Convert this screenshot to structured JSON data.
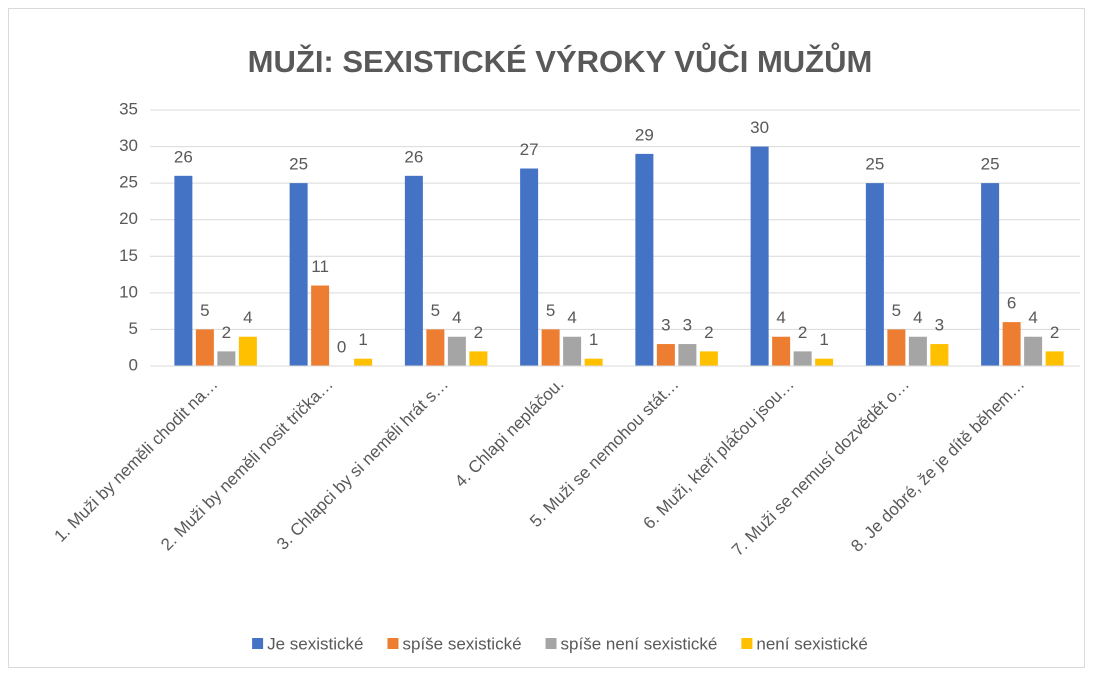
{
  "chart_data": {
    "type": "bar",
    "title": "MUŽI: SEXISTICKÉ VÝROKY VŮČI MUŽŮM",
    "categories": [
      "1. Muži by neměli chodit na…",
      "2. Muži by neměli nosit trička…",
      "3. Chlapci by si neměli hrát s…",
      "4. Chlapi nepláčou.",
      "5. Muži se nemohou stát…",
      "6. Muži, kteří pláčou jsou…",
      "7. Muži se nemusí dozvědět o…",
      "8. Je dobré, že je dítě během…"
    ],
    "series": [
      {
        "name": "Je sexistické",
        "color": "#4472c4",
        "values": [
          26,
          25,
          26,
          27,
          29,
          30,
          25,
          25
        ]
      },
      {
        "name": "spíše sexistické",
        "color": "#ed7d31",
        "values": [
          5,
          11,
          5,
          5,
          3,
          4,
          5,
          6
        ]
      },
      {
        "name": "spíše není sexistické",
        "color": "#a5a5a5",
        "values": [
          2,
          0,
          4,
          4,
          3,
          2,
          4,
          4
        ]
      },
      {
        "name": "není sexistické",
        "color": "#ffc000",
        "values": [
          4,
          1,
          2,
          1,
          2,
          1,
          3,
          2
        ]
      }
    ],
    "ylim": [
      0,
      35
    ],
    "yticks": [
      0,
      5,
      10,
      15,
      20,
      25,
      30,
      35
    ],
    "grid": true,
    "legend": "bottom"
  }
}
